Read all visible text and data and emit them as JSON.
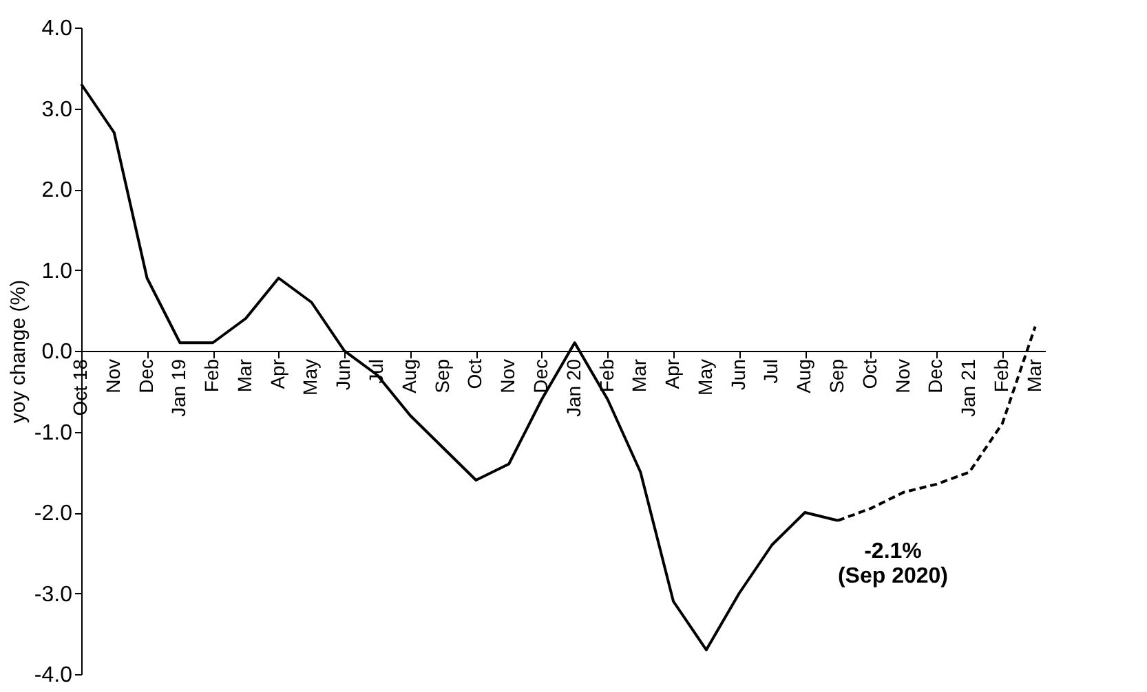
{
  "chart_data": {
    "type": "line",
    "ylabel": "yoy change (%)",
    "categories": [
      "Oct 18",
      "Nov",
      "Dec",
      "Jan 19",
      "Feb",
      "Mar",
      "Apr",
      "May",
      "Jun",
      "Jul",
      "Aug",
      "Sep",
      "Oct",
      "Nov",
      "Dec",
      "Jan 20",
      "Feb",
      "Mar",
      "Apr",
      "May",
      "Jun",
      "Jul",
      "Aug",
      "Sep",
      "Oct",
      "Nov",
      "Dec",
      "Jan 21",
      "Feb",
      "Mar"
    ],
    "series": [
      {
        "color": "#000000",
        "line_style": "solid",
        "values": [
          3.3,
          2.7,
          0.9,
          0.1,
          0.1,
          0.4,
          0.9,
          0.6,
          0.0,
          -0.3,
          -0.8,
          -1.2,
          -1.6,
          -1.4,
          -0.6,
          0.1,
          -0.6,
          -1.5,
          -3.1,
          -3.7,
          -3.0,
          -2.4,
          -2.0,
          -2.1,
          null,
          null,
          null,
          null,
          null,
          null
        ]
      },
      {
        "color": "#000000",
        "line_style": "dashed",
        "values": [
          null,
          null,
          null,
          null,
          null,
          null,
          null,
          null,
          null,
          null,
          null,
          null,
          null,
          null,
          null,
          null,
          null,
          null,
          null,
          null,
          null,
          null,
          null,
          -2.1,
          -1.95,
          -1.75,
          -1.65,
          -1.5,
          -0.9,
          0.3
        ]
      }
    ],
    "ylim": [
      -4,
      4
    ],
    "yticks": [
      {
        "value": -4,
        "label": "-4.0"
      },
      {
        "value": -3,
        "label": "-3.0"
      },
      {
        "value": -2,
        "label": "-2.0"
      },
      {
        "value": -1,
        "label": "-1.0"
      },
      {
        "value": 0,
        "label": "0.0"
      },
      {
        "value": 1,
        "label": "1.0"
      },
      {
        "value": 2,
        "label": "2.0"
      },
      {
        "value": 3,
        "label": "3.0"
      },
      {
        "value": 4,
        "label": "4.0"
      }
    ],
    "grid": false,
    "legend": false,
    "marker": "none",
    "annotations": [
      "-2.1%\n(Sep 2020)"
    ]
  }
}
